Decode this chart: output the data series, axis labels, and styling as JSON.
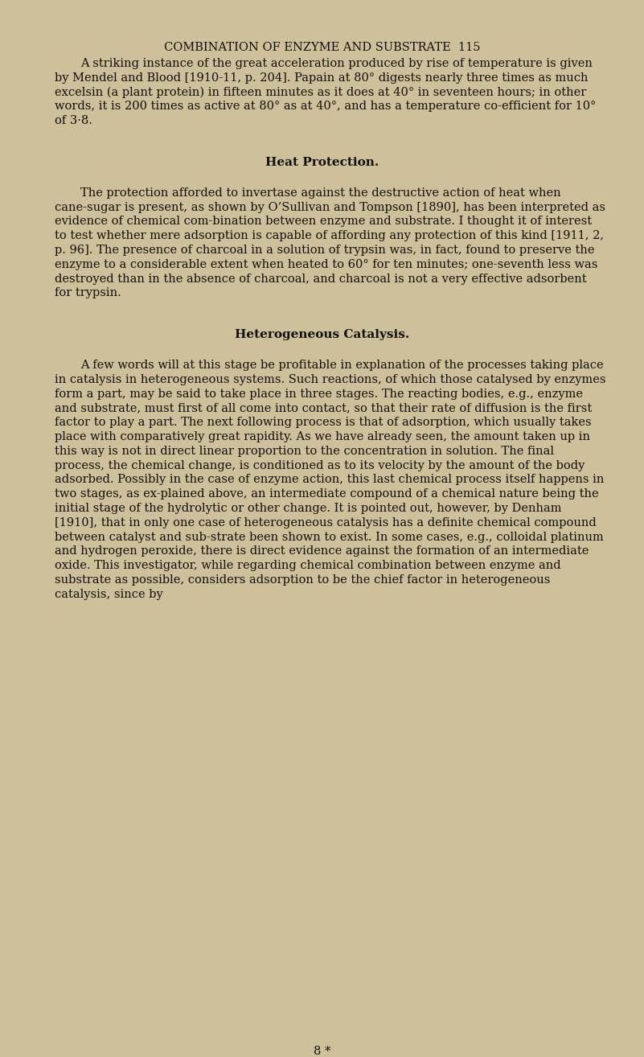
{
  "bg_color": "#cdc09a",
  "text_color": "#111008",
  "header": "COMBINATION OF ENZYME AND SUBSTRATE  115",
  "header_font_size": 10.5,
  "body_font_size": 10.5,
  "section_font_size": 11.0,
  "paragraphs": [
    {
      "type": "body_indent",
      "text": "A striking instance of the great acceleration produced by rise of temperature is given by Mendel and Blood [1910-11, p. 204].  Papain at 80° digests nearly three times as much excelsin (a plant protein) in fifteen minutes as it does at 40° in seventeen hours; in other words, it is 200 times as active at 80° as at 40°, and has a temperature co-efficient for 10° of 3·8."
    },
    {
      "type": "section",
      "text": "Heat Protection."
    },
    {
      "type": "body_indent",
      "text": "The protection afforded to invertase against the destructive action of heat when cane-sugar is present, as shown by O’Sullivan and Tompson [1890], has been interpreted as evidence of chemical com-bination between enzyme and substrate.  I thought it of interest to test whether mere adsorption is capable of affording any protection of this kind [1911, 2, p. 96].  The presence of charcoal in a solution of trypsin was, in fact, found to preserve the enzyme to a considerable extent when heated to 60° for ten minutes; one-seventh less was destroyed than in the absence of charcoal, and charcoal is not a very effective adsorbent for trypsin."
    },
    {
      "type": "section",
      "text": "Heterogeneous Catalysis."
    },
    {
      "type": "body_indent",
      "text": "A few words will at this stage be profitable in explanation of the processes taking place in catalysis in heterogeneous systems.  Such reactions, of which those catalysed by enzymes form a part, may be said to take place in three stages.  The reacting bodies, e.g., enzyme and substrate, must first of all come into contact, so that their rate of diffusion is the first factor to play a part.  The next following process is that of adsorption, which usually takes place with comparatively great rapidity.  As we have already seen, the amount taken up in this way is not in direct linear proportion to the concentration in solution.  The final process, the chemical change, is conditioned as to its velocity by the amount of the body adsorbed.  Possibly in the case of enzyme action, this last chemical process itself happens in two stages, as ex-plained above, an intermediate compound of a chemical nature being the initial stage of the hydrolytic or other change.  It is pointed out, however, by Denham [1910], that in only one case of heterogeneous catalysis has a definite chemical compound between catalyst and sub-strate been shown to exist.  In some cases, e.g., colloidal platinum and hydrogen peroxide, there is direct evidence against the formation of an intermediate oxide.  This investigator, while regarding chemical combination between enzyme and substrate as possible, considers adsorption to be the chief factor in heterogeneous catalysis, since by"
    },
    {
      "type": "footer",
      "text": "8 *"
    }
  ]
}
